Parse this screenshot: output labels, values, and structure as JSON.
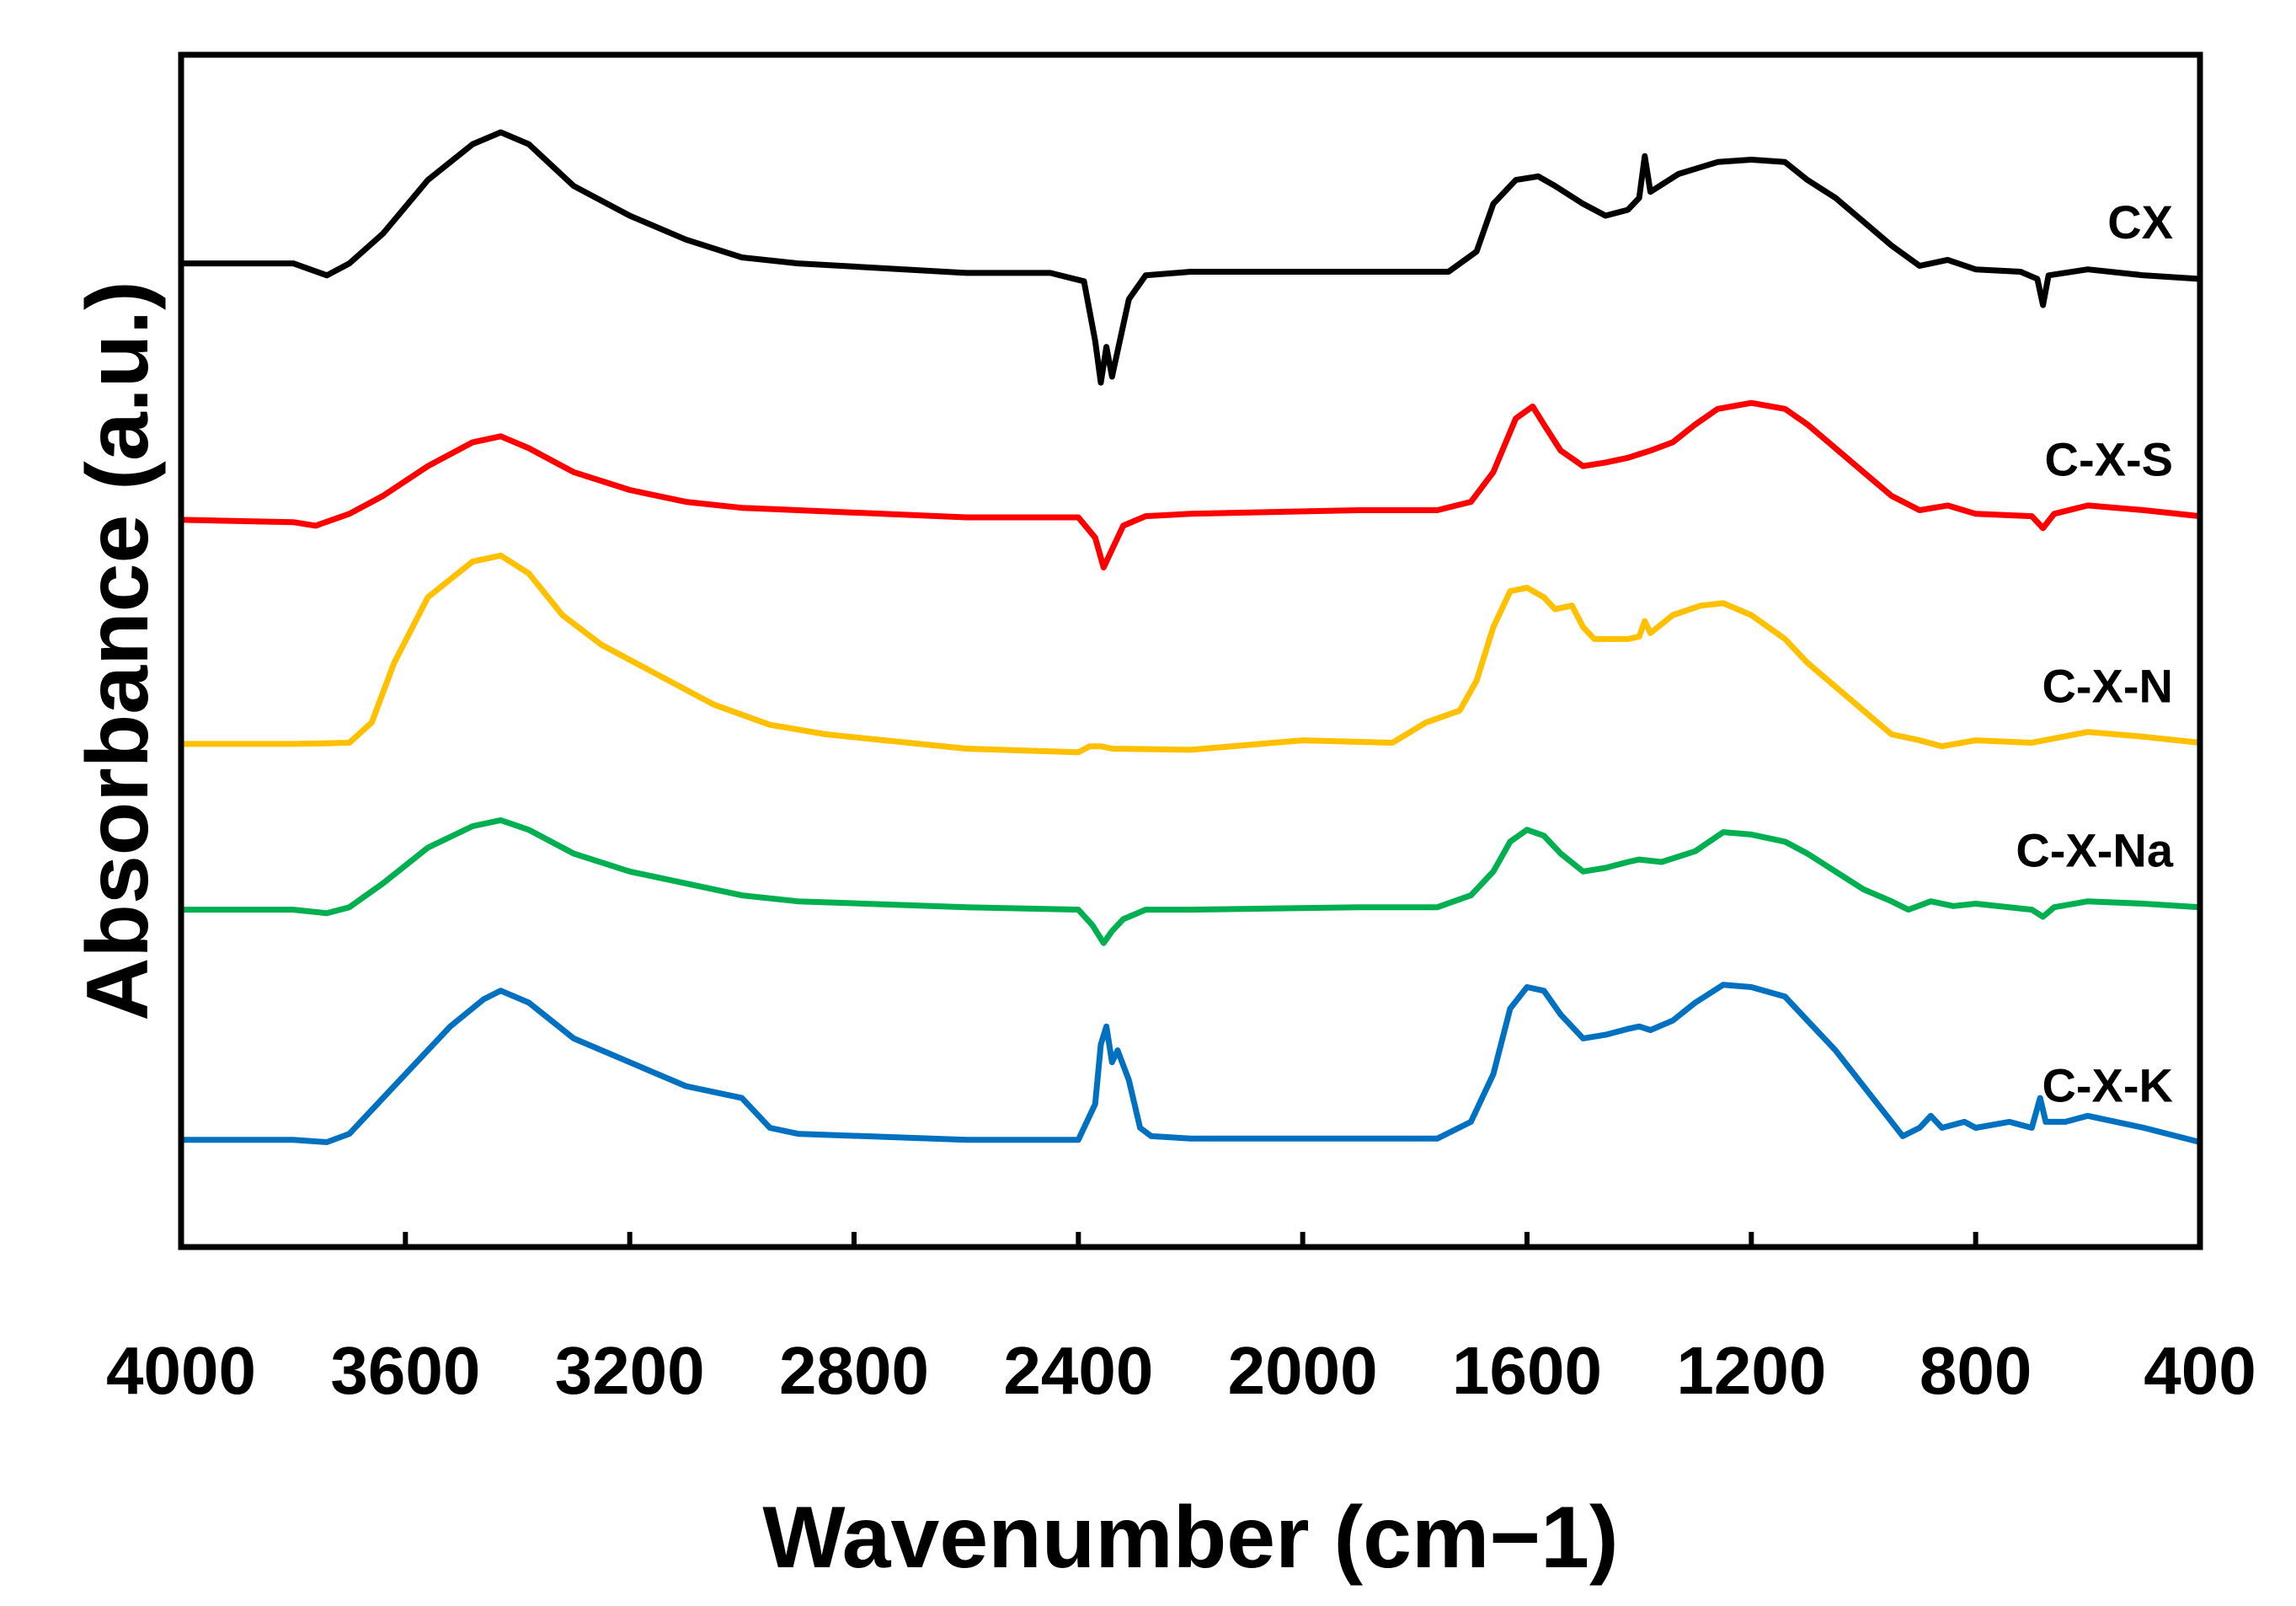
{
  "chart_data": {
    "type": "line",
    "title": "",
    "xlabel": "Wavenumber (cm−1)",
    "ylabel": "Absorbance (a.u.)",
    "xlim": [
      4000,
      400
    ],
    "x_reversed": true,
    "ylim": [
      0,
      100
    ],
    "yticks_shown": false,
    "xticks": [
      4000,
      3600,
      3200,
      2800,
      2400,
      2000,
      1600,
      1200,
      800,
      400
    ],
    "xtick_labels": [
      "4000",
      "3600",
      "3200",
      "2800",
      "2400",
      "2000",
      "1600",
      "1200",
      "800",
      "400"
    ],
    "grid": false,
    "legend": "inline labels at right end of each trace",
    "series": [
      {
        "name": "CX",
        "color": "#000000",
        "points": [
          [
            4000,
            82.5
          ],
          [
            3800,
            82.5
          ],
          [
            3740,
            81.5
          ],
          [
            3700,
            82.5
          ],
          [
            3640,
            85.0
          ],
          [
            3560,
            89.5
          ],
          [
            3480,
            92.5
          ],
          [
            3430,
            93.5
          ],
          [
            3380,
            92.5
          ],
          [
            3300,
            89.0
          ],
          [
            3200,
            86.5
          ],
          [
            3100,
            84.5
          ],
          [
            3000,
            83.0
          ],
          [
            2900,
            82.5
          ],
          [
            2600,
            81.7
          ],
          [
            2450,
            81.7
          ],
          [
            2390,
            81.0
          ],
          [
            2370,
            76.0
          ],
          [
            2360,
            72.5
          ],
          [
            2350,
            75.5
          ],
          [
            2340,
            73.0
          ],
          [
            2310,
            79.5
          ],
          [
            2280,
            81.5
          ],
          [
            2200,
            81.8
          ],
          [
            1900,
            81.8
          ],
          [
            1740,
            81.8
          ],
          [
            1690,
            83.5
          ],
          [
            1660,
            87.5
          ],
          [
            1620,
            89.5
          ],
          [
            1580,
            89.8
          ],
          [
            1550,
            89.0
          ],
          [
            1500,
            87.5
          ],
          [
            1460,
            86.5
          ],
          [
            1420,
            87.0
          ],
          [
            1400,
            88.0
          ],
          [
            1390,
            91.5
          ],
          [
            1380,
            88.5
          ],
          [
            1330,
            90.0
          ],
          [
            1260,
            91.0
          ],
          [
            1200,
            91.2
          ],
          [
            1140,
            91.0
          ],
          [
            1100,
            89.5
          ],
          [
            1050,
            88.0
          ],
          [
            1000,
            86.0
          ],
          [
            950,
            84.0
          ],
          [
            900,
            82.3
          ],
          [
            850,
            82.8
          ],
          [
            800,
            82.0
          ],
          [
            720,
            81.8
          ],
          [
            690,
            81.2
          ],
          [
            680,
            79.0
          ],
          [
            670,
            81.5
          ],
          [
            600,
            82.0
          ],
          [
            500,
            81.5
          ],
          [
            400,
            81.2
          ]
        ]
      },
      {
        "name": "C-X-S",
        "color": "#ff0000",
        "points": [
          [
            4000,
            61.0
          ],
          [
            3800,
            60.8
          ],
          [
            3760,
            60.5
          ],
          [
            3700,
            61.5
          ],
          [
            3640,
            63.0
          ],
          [
            3560,
            65.5
          ],
          [
            3480,
            67.5
          ],
          [
            3430,
            68.0
          ],
          [
            3380,
            67.0
          ],
          [
            3300,
            65.0
          ],
          [
            3200,
            63.5
          ],
          [
            3100,
            62.5
          ],
          [
            3000,
            62.0
          ],
          [
            2900,
            61.8
          ],
          [
            2600,
            61.2
          ],
          [
            2400,
            61.2
          ],
          [
            2370,
            59.5
          ],
          [
            2355,
            57.0
          ],
          [
            2340,
            58.5
          ],
          [
            2320,
            60.5
          ],
          [
            2280,
            61.3
          ],
          [
            2200,
            61.5
          ],
          [
            1900,
            61.8
          ],
          [
            1760,
            61.8
          ],
          [
            1700,
            62.5
          ],
          [
            1660,
            65.0
          ],
          [
            1620,
            69.5
          ],
          [
            1590,
            70.5
          ],
          [
            1570,
            69.0
          ],
          [
            1540,
            66.8
          ],
          [
            1500,
            65.5
          ],
          [
            1460,
            65.8
          ],
          [
            1420,
            66.2
          ],
          [
            1400,
            66.5
          ],
          [
            1380,
            66.8
          ],
          [
            1340,
            67.5
          ],
          [
            1300,
            69.0
          ],
          [
            1260,
            70.3
          ],
          [
            1200,
            70.8
          ],
          [
            1140,
            70.3
          ],
          [
            1100,
            69.0
          ],
          [
            1050,
            67.0
          ],
          [
            1000,
            65.0
          ],
          [
            950,
            63.0
          ],
          [
            900,
            61.8
          ],
          [
            850,
            62.2
          ],
          [
            800,
            61.5
          ],
          [
            700,
            61.3
          ],
          [
            680,
            60.3
          ],
          [
            660,
            61.5
          ],
          [
            600,
            62.2
          ],
          [
            500,
            61.8
          ],
          [
            400,
            61.3
          ]
        ]
      },
      {
        "name": "C-X-N",
        "color": "#ffc000",
        "points": [
          [
            4000,
            42.2
          ],
          [
            3800,
            42.2
          ],
          [
            3700,
            42.3
          ],
          [
            3660,
            44.0
          ],
          [
            3620,
            49.0
          ],
          [
            3560,
            54.5
          ],
          [
            3480,
            57.5
          ],
          [
            3430,
            58.0
          ],
          [
            3380,
            56.5
          ],
          [
            3320,
            53.0
          ],
          [
            3250,
            50.5
          ],
          [
            3150,
            48.0
          ],
          [
            3050,
            45.5
          ],
          [
            2950,
            43.8
          ],
          [
            2850,
            43.0
          ],
          [
            2600,
            41.8
          ],
          [
            2400,
            41.5
          ],
          [
            2380,
            42.0
          ],
          [
            2360,
            42.0
          ],
          [
            2340,
            41.8
          ],
          [
            2200,
            41.7
          ],
          [
            2000,
            42.5
          ],
          [
            1840,
            42.3
          ],
          [
            1780,
            44.0
          ],
          [
            1720,
            45.0
          ],
          [
            1690,
            47.5
          ],
          [
            1660,
            52.0
          ],
          [
            1630,
            55.0
          ],
          [
            1600,
            55.3
          ],
          [
            1570,
            54.5
          ],
          [
            1550,
            53.5
          ],
          [
            1520,
            53.8
          ],
          [
            1500,
            52.0
          ],
          [
            1480,
            51.0
          ],
          [
            1420,
            51.0
          ],
          [
            1400,
            51.2
          ],
          [
            1390,
            52.5
          ],
          [
            1380,
            51.5
          ],
          [
            1340,
            53.0
          ],
          [
            1290,
            53.8
          ],
          [
            1250,
            54.0
          ],
          [
            1200,
            53.0
          ],
          [
            1140,
            51.0
          ],
          [
            1100,
            49.0
          ],
          [
            1050,
            47.0
          ],
          [
            1000,
            45.0
          ],
          [
            950,
            43.0
          ],
          [
            900,
            42.5
          ],
          [
            860,
            42.0
          ],
          [
            800,
            42.5
          ],
          [
            700,
            42.3
          ],
          [
            600,
            43.2
          ],
          [
            500,
            42.8
          ],
          [
            400,
            42.3
          ]
        ]
      },
      {
        "name": "C-X-Na",
        "color": "#00b050",
        "points": [
          [
            4000,
            28.3
          ],
          [
            3800,
            28.3
          ],
          [
            3740,
            28.0
          ],
          [
            3700,
            28.5
          ],
          [
            3640,
            30.5
          ],
          [
            3560,
            33.5
          ],
          [
            3480,
            35.3
          ],
          [
            3430,
            35.8
          ],
          [
            3380,
            35.0
          ],
          [
            3300,
            33.0
          ],
          [
            3200,
            31.5
          ],
          [
            3100,
            30.5
          ],
          [
            3000,
            29.5
          ],
          [
            2900,
            29.0
          ],
          [
            2600,
            28.5
          ],
          [
            2400,
            28.3
          ],
          [
            2375,
            27.0
          ],
          [
            2355,
            25.5
          ],
          [
            2340,
            26.5
          ],
          [
            2320,
            27.5
          ],
          [
            2280,
            28.3
          ],
          [
            2200,
            28.3
          ],
          [
            1900,
            28.5
          ],
          [
            1760,
            28.5
          ],
          [
            1700,
            29.5
          ],
          [
            1660,
            31.5
          ],
          [
            1630,
            34.0
          ],
          [
            1600,
            35.0
          ],
          [
            1570,
            34.5
          ],
          [
            1540,
            33.0
          ],
          [
            1500,
            31.5
          ],
          [
            1460,
            31.8
          ],
          [
            1420,
            32.3
          ],
          [
            1400,
            32.5
          ],
          [
            1360,
            32.3
          ],
          [
            1300,
            33.2
          ],
          [
            1250,
            34.8
          ],
          [
            1200,
            34.6
          ],
          [
            1140,
            34.0
          ],
          [
            1100,
            33.0
          ],
          [
            1050,
            31.5
          ],
          [
            1000,
            30.0
          ],
          [
            950,
            29.0
          ],
          [
            920,
            28.3
          ],
          [
            880,
            29.0
          ],
          [
            840,
            28.6
          ],
          [
            800,
            28.8
          ],
          [
            700,
            28.3
          ],
          [
            680,
            27.7
          ],
          [
            660,
            28.5
          ],
          [
            600,
            29.0
          ],
          [
            500,
            28.8
          ],
          [
            400,
            28.5
          ]
        ]
      },
      {
        "name": "C-X-K",
        "color": "#0070c0",
        "points": [
          [
            4000,
            9.0
          ],
          [
            3800,
            9.0
          ],
          [
            3740,
            8.8
          ],
          [
            3700,
            9.5
          ],
          [
            3660,
            11.5
          ],
          [
            3600,
            14.5
          ],
          [
            3520,
            18.5
          ],
          [
            3460,
            20.8
          ],
          [
            3430,
            21.5
          ],
          [
            3380,
            20.5
          ],
          [
            3300,
            17.5
          ],
          [
            3200,
            15.5
          ],
          [
            3100,
            13.5
          ],
          [
            3000,
            12.5
          ],
          [
            2950,
            10.0
          ],
          [
            2900,
            9.5
          ],
          [
            2600,
            9.0
          ],
          [
            2400,
            9.0
          ],
          [
            2370,
            12.0
          ],
          [
            2360,
            17.0
          ],
          [
            2350,
            18.5
          ],
          [
            2340,
            15.5
          ],
          [
            2330,
            16.5
          ],
          [
            2310,
            14.0
          ],
          [
            2290,
            10.0
          ],
          [
            2270,
            9.3
          ],
          [
            2200,
            9.1
          ],
          [
            1900,
            9.1
          ],
          [
            1760,
            9.1
          ],
          [
            1700,
            10.5
          ],
          [
            1660,
            14.5
          ],
          [
            1630,
            20.0
          ],
          [
            1600,
            21.8
          ],
          [
            1570,
            21.5
          ],
          [
            1540,
            19.5
          ],
          [
            1500,
            17.5
          ],
          [
            1460,
            17.8
          ],
          [
            1420,
            18.3
          ],
          [
            1400,
            18.5
          ],
          [
            1380,
            18.2
          ],
          [
            1340,
            19.0
          ],
          [
            1300,
            20.5
          ],
          [
            1250,
            22.0
          ],
          [
            1200,
            21.8
          ],
          [
            1140,
            21.0
          ],
          [
            1100,
            19.0
          ],
          [
            1050,
            16.5
          ],
          [
            1000,
            13.5
          ],
          [
            950,
            10.5
          ],
          [
            930,
            9.3
          ],
          [
            900,
            10.0
          ],
          [
            880,
            11.0
          ],
          [
            860,
            10.0
          ],
          [
            820,
            10.5
          ],
          [
            800,
            10.0
          ],
          [
            740,
            10.5
          ],
          [
            700,
            10.0
          ],
          [
            685,
            12.5
          ],
          [
            675,
            10.5
          ],
          [
            640,
            10.5
          ],
          [
            600,
            11.0
          ],
          [
            500,
            10.0
          ],
          [
            400,
            8.8
          ]
        ]
      }
    ]
  }
}
